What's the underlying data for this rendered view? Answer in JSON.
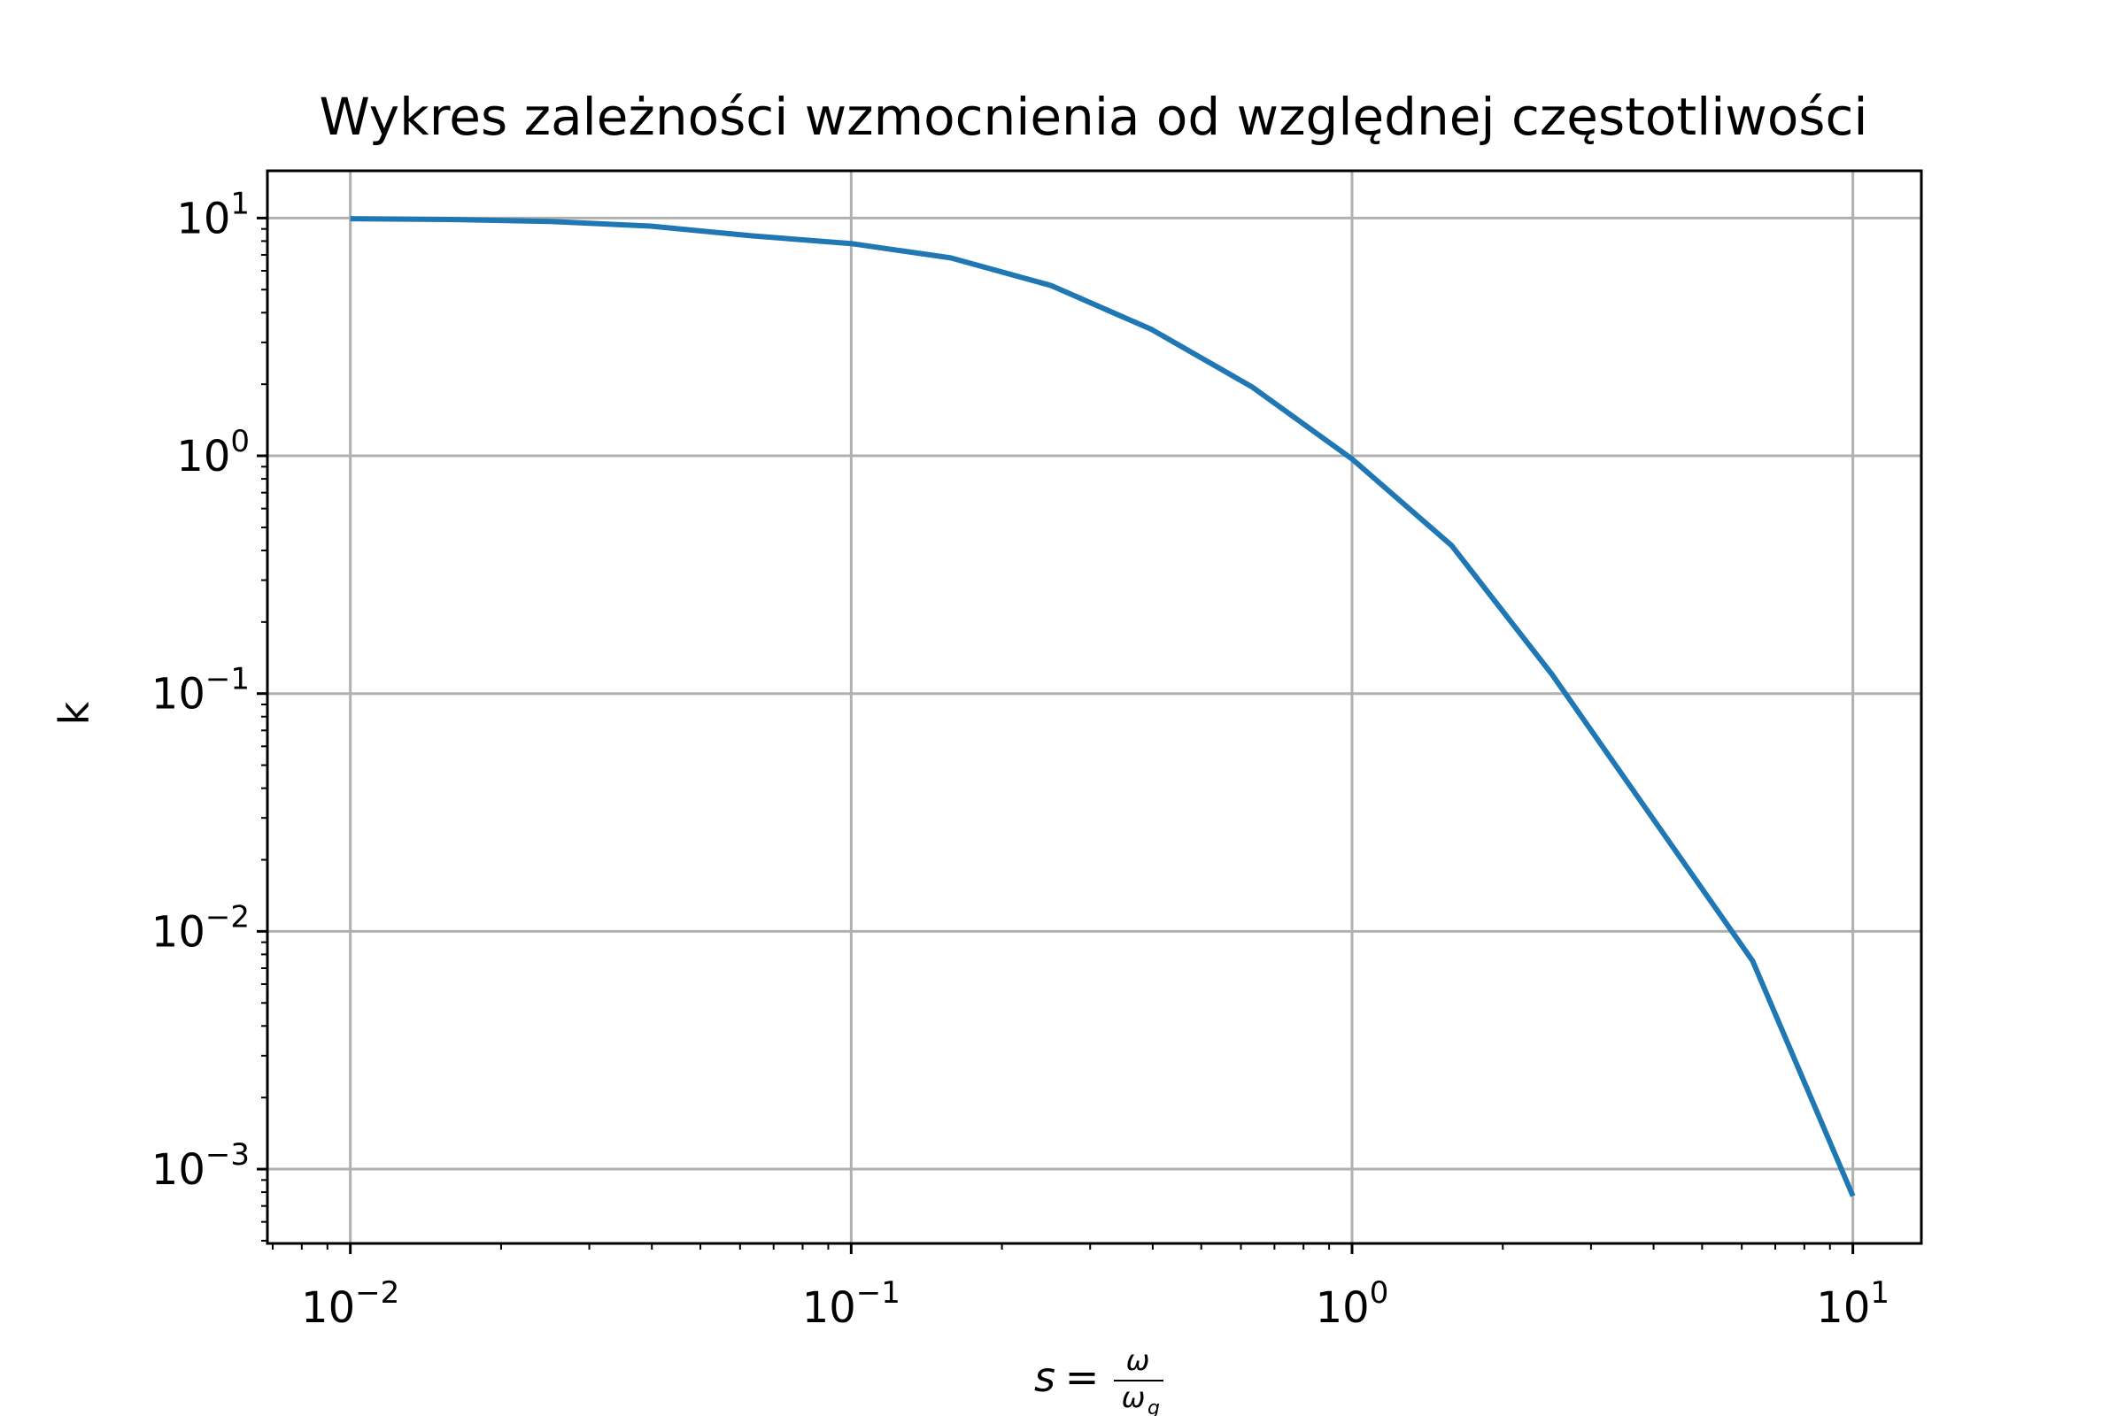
{
  "chart_data": {
    "type": "line",
    "title": "Wykres zależności wzmocnienia od względnej częstotliwości",
    "xlabel": {
      "prefix": "s",
      "equals": "=",
      "numerator": "ω",
      "denominator": "ω",
      "denominator_subscript": "g"
    },
    "ylabel": "k",
    "x_scale": "log",
    "y_scale": "log",
    "xlim": [
      0.00683,
      13.7
    ],
    "ylim": [
      0.000487,
      15.8
    ],
    "grid": true,
    "x_ticks": [
      {
        "value": 0.01,
        "base": "10",
        "exp": "−2"
      },
      {
        "value": 0.1,
        "base": "10",
        "exp": "−1"
      },
      {
        "value": 1,
        "base": "10",
        "exp": "0"
      },
      {
        "value": 10,
        "base": "10",
        "exp": "1"
      }
    ],
    "y_ticks": [
      {
        "value": 0.001,
        "base": "10",
        "exp": "−3"
      },
      {
        "value": 0.01,
        "base": "10",
        "exp": "−2"
      },
      {
        "value": 0.1,
        "base": "10",
        "exp": "−1"
      },
      {
        "value": 1,
        "base": "10",
        "exp": "0"
      },
      {
        "value": 10,
        "base": "10",
        "exp": "1"
      }
    ],
    "series": [
      {
        "color": "#1f77b4",
        "x": [
          0.01,
          0.0158,
          0.0251,
          0.0398,
          0.0631,
          0.1,
          0.158,
          0.251,
          0.398,
          0.631,
          1.0,
          1.58,
          2.51,
          3.98,
          6.31,
          10.0
        ],
        "y": [
          9.94,
          9.86,
          9.68,
          9.25,
          8.42,
          7.81,
          6.8,
          5.2,
          3.4,
          1.95,
          0.97,
          0.42,
          0.12,
          0.03,
          0.0075,
          0.00077
        ]
      }
    ]
  }
}
